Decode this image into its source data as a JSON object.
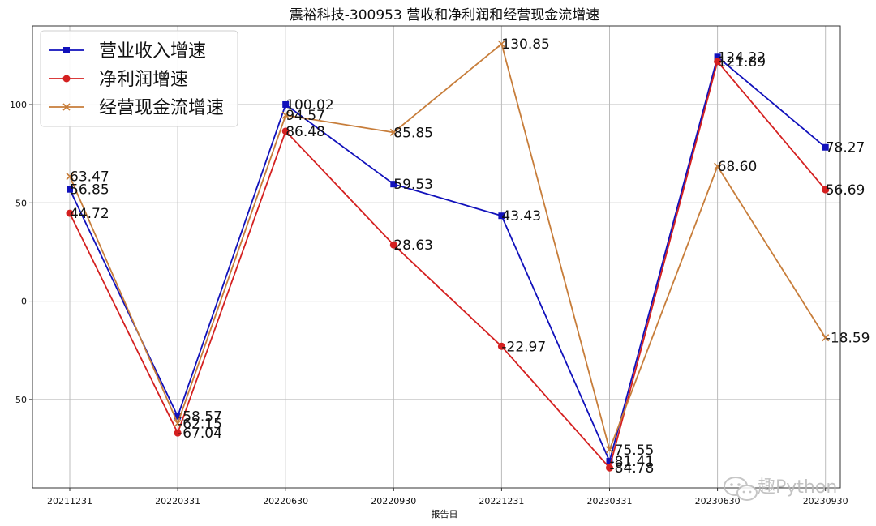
{
  "chart_data": {
    "type": "line",
    "title": "震裕科技-300953 营收和净利润和经营现金流增速",
    "xlabel": "报告日",
    "ylabel": "",
    "categories": [
      "20211231",
      "20220331",
      "20220630",
      "20220930",
      "20221231",
      "20230331",
      "20230630",
      "20230930"
    ],
    "ylim": [
      -95,
      140
    ],
    "yticks": [
      100,
      50,
      0,
      -50
    ],
    "ytick_labels": [
      "100",
      "50",
      "0",
      "−50"
    ],
    "grid": true,
    "legend_position": "top-left",
    "series": [
      {
        "name": "营业收入增速",
        "marker": "square",
        "color": "#1111bb",
        "values": [
          56.85,
          -58.57,
          100.02,
          59.53,
          43.43,
          -81.41,
          124.22,
          78.27
        ],
        "labels": [
          "56.85",
          "-58.57",
          "100.02",
          "59.53",
          "43.43",
          "-81.41",
          "124.22",
          "78.27"
        ]
      },
      {
        "name": "净利润增速",
        "marker": "circle",
        "color": "#d42020",
        "values": [
          44.72,
          -67.04,
          86.48,
          28.63,
          -22.97,
          -84.78,
          121.89,
          56.69
        ],
        "labels": [
          "44.72",
          "-67.04",
          "86.48",
          "28.63",
          "-22.97",
          "-84.78",
          "121.89",
          "56.69"
        ]
      },
      {
        "name": "经营现金流增速",
        "marker": "x",
        "color": "#c77d3a",
        "values": [
          63.47,
          -62.15,
          94.57,
          85.85,
          130.85,
          -75.55,
          68.6,
          -18.59
        ],
        "labels": [
          "63.47",
          "-62.15",
          "94.57",
          "85.85",
          "130.85",
          "-75.55",
          "68.60",
          "-18.59"
        ]
      }
    ]
  },
  "watermark": {
    "text": "趣Python",
    "icon": "wechat-icon"
  }
}
